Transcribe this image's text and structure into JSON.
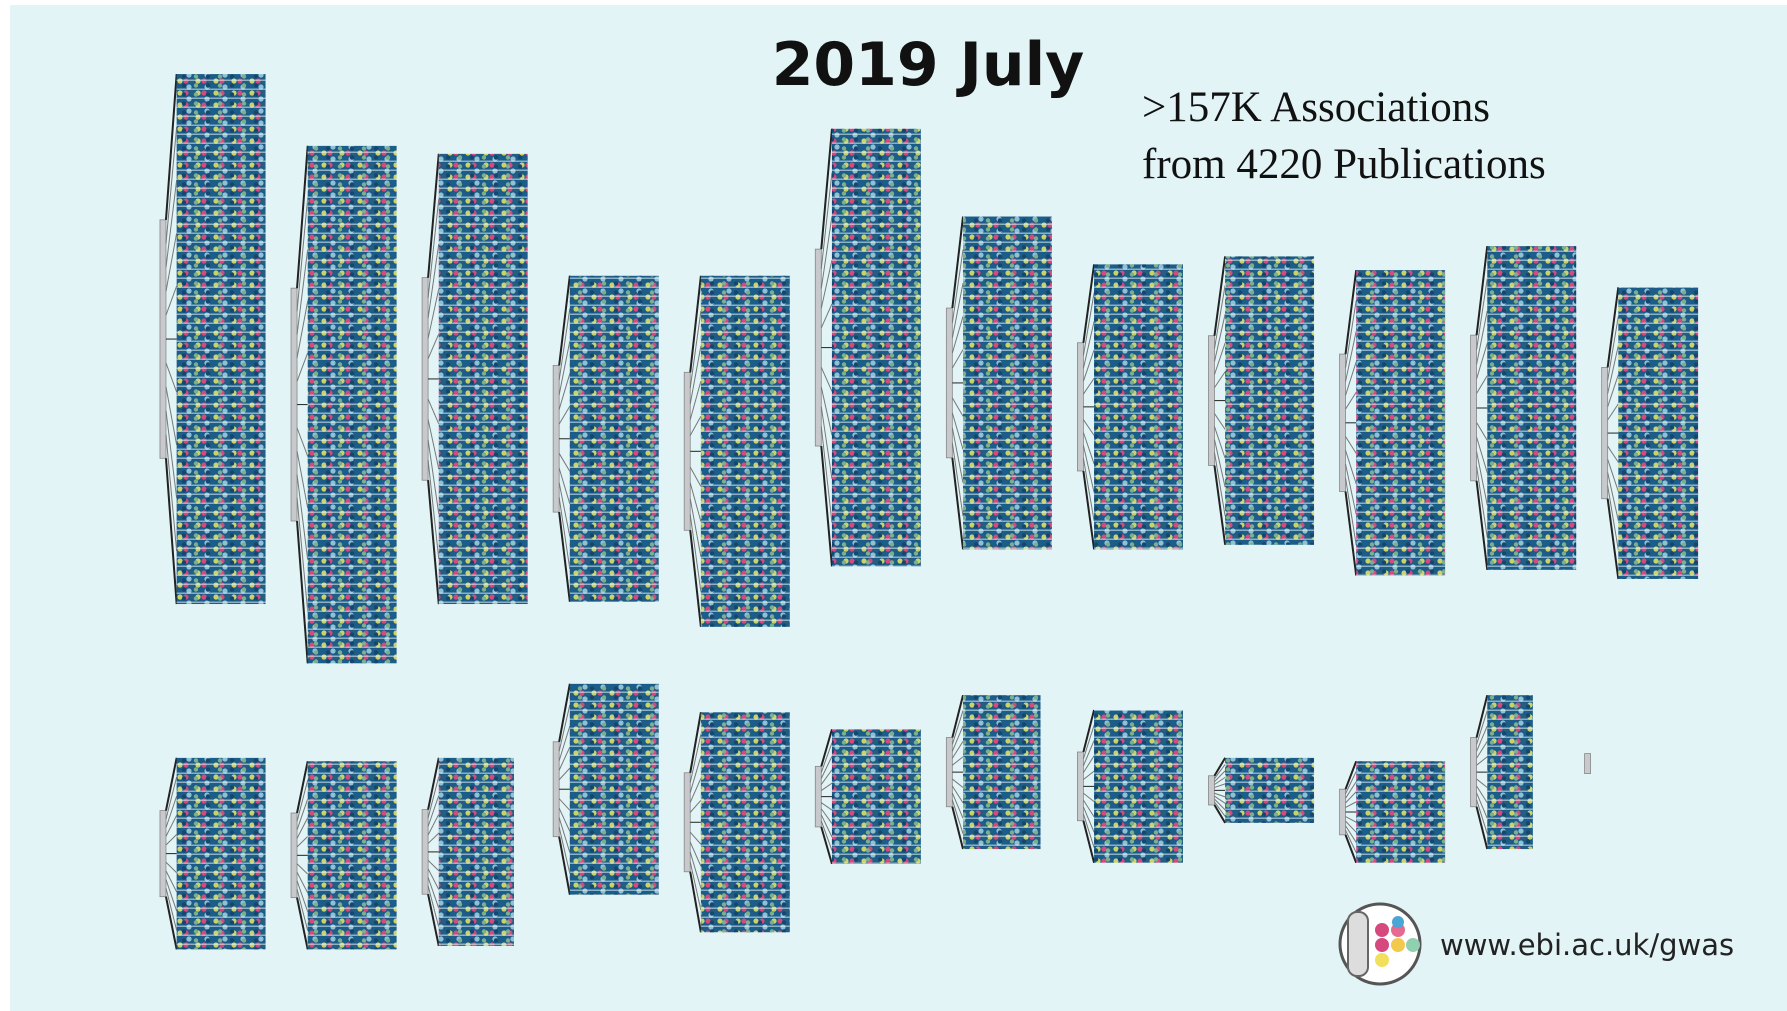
{
  "header": {
    "title": "2019 July"
  },
  "stats": {
    "line1": ">157K Associations",
    "line2": "from 4220 Publications"
  },
  "footer": {
    "url": "www.ebi.ac.uk/gwas"
  }
}
